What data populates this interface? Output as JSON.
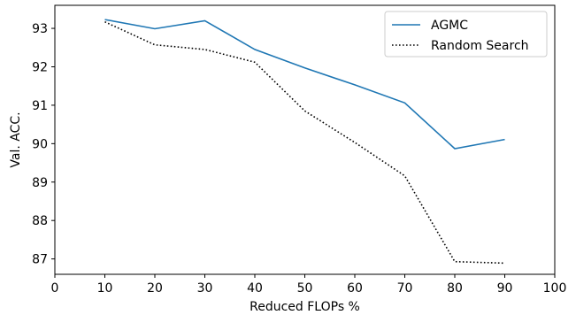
{
  "chart_data": {
    "type": "line",
    "xlabel": "Reduced FLOPs %",
    "ylabel": "Val. ACC.",
    "xlim": [
      0,
      100
    ],
    "ylim": [
      86.6,
      93.6
    ],
    "xticks": [
      0,
      10,
      20,
      30,
      40,
      50,
      60,
      70,
      80,
      90,
      100
    ],
    "yticks": [
      87,
      88,
      89,
      90,
      91,
      92,
      93
    ],
    "grid": false,
    "legend_position": "top-right",
    "series": [
      {
        "name": "AGMC",
        "style": "solid",
        "color": "#1f77b4",
        "x": [
          10,
          20,
          30,
          40,
          50,
          60,
          70,
          80,
          90
        ],
        "y": [
          93.23,
          92.99,
          93.2,
          92.45,
          91.97,
          91.53,
          91.06,
          89.87,
          90.11
        ]
      },
      {
        "name": "Random Search",
        "style": "dotted",
        "color": "#000000",
        "x": [
          10,
          20,
          30,
          40,
          50,
          60,
          70,
          80,
          90
        ],
        "y": [
          93.17,
          92.57,
          92.45,
          92.12,
          90.85,
          90.03,
          89.16,
          86.93,
          86.89
        ]
      }
    ]
  }
}
